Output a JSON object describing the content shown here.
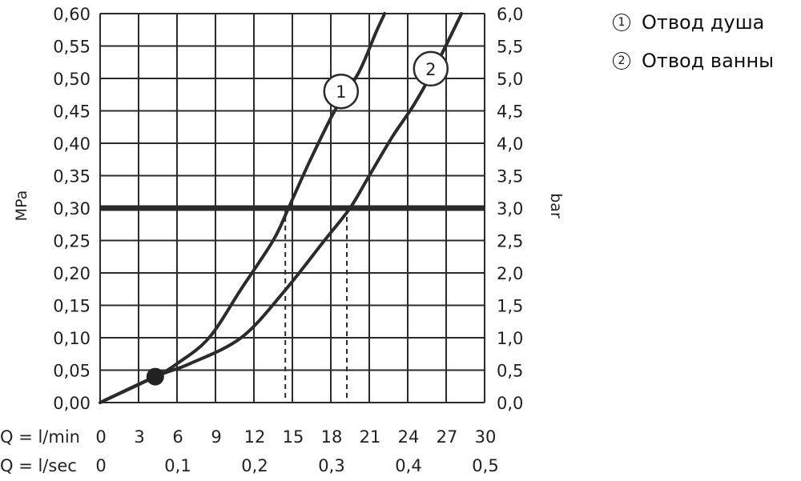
{
  "chart_data": {
    "type": "line",
    "y_left_label": "MPa",
    "y_right_label": "bar",
    "x_primary_label": "Q = l/min",
    "x_secondary_label": "Q = l/sec",
    "x_ticks": [
      "0",
      "3",
      "6",
      "9",
      "12",
      "15",
      "18",
      "21",
      "24",
      "27",
      "30"
    ],
    "x_ticks_values": [
      0,
      3,
      6,
      9,
      12,
      15,
      18,
      21,
      24,
      27,
      30
    ],
    "x_secondary_ticks": [
      "0",
      "0,1",
      "0,2",
      "0,3",
      "0,4",
      "0,5"
    ],
    "x_secondary_values": [
      0,
      6,
      12,
      18,
      24,
      30
    ],
    "y_left_ticks": [
      "0,00",
      "0,05",
      "0,10",
      "0,15",
      "0,20",
      "0,25",
      "0,30",
      "0,35",
      "0,40",
      "0,45",
      "0,50",
      "0,55",
      "0,60"
    ],
    "y_right_ticks": [
      "0,0",
      "0,5",
      "1,0",
      "1,5",
      "2,0",
      "2,5",
      "3,0",
      "3,5",
      "4,0",
      "4,5",
      "5,0",
      "5,5",
      "6,0"
    ],
    "y_values": [
      0,
      0.05,
      0.1,
      0.15,
      0.2,
      0.25,
      0.3,
      0.35,
      0.4,
      0.45,
      0.5,
      0.55,
      0.6
    ],
    "xlim": [
      0,
      30
    ],
    "ylim": [
      0,
      0.6
    ],
    "grid": true,
    "reference_line": {
      "y": 0.3
    },
    "marker_point": {
      "x": 4.3,
      "y": 0.04
    },
    "series": [
      {
        "name": "1",
        "label": "Отвод душа",
        "x": [
          0,
          4.3,
          6,
          8.5,
          11,
          13.5,
          14.7,
          16.3,
          18.3,
          20.2,
          21.5,
          22.2
        ],
        "y": [
          0,
          0.04,
          0.06,
          0.1,
          0.175,
          0.25,
          0.3,
          0.37,
          0.45,
          0.51,
          0.57,
          0.6
        ],
        "callout_at": [
          18.8,
          0.48
        ]
      },
      {
        "name": "2",
        "label": "Отвод ванны",
        "x": [
          0,
          4.3,
          7,
          11,
          14.3,
          17.5,
          19.5,
          21,
          22.8,
          24.5,
          26.2,
          28.2
        ],
        "y": [
          0,
          0.04,
          0.06,
          0.1,
          0.17,
          0.25,
          0.3,
          0.35,
          0.41,
          0.46,
          0.52,
          0.6
        ],
        "callout_at": [
          25.8,
          0.515
        ]
      }
    ],
    "dashed_intersections": [
      14.7,
      19.5
    ]
  },
  "legend": [
    {
      "marker": "1",
      "label": "Отвод душа"
    },
    {
      "marker": "2",
      "label": "Отвод ванны"
    }
  ]
}
